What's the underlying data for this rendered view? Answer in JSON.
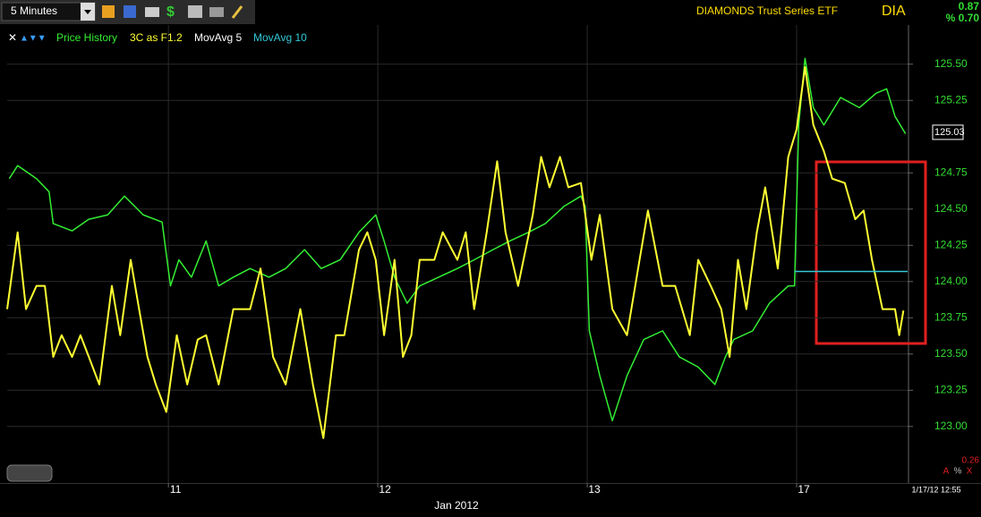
{
  "toolbar": {
    "interval": "5 Minutes"
  },
  "header": {
    "name": "DIAMONDS Trust Series ETF",
    "symbol": "DIA",
    "change": "0.87",
    "pct_change": "% 0.70"
  },
  "footer": {
    "indicator_value": "0.26",
    "buttons": [
      "A",
      "%",
      "X"
    ],
    "timestamp": "1/17/12 12:55"
  },
  "chart_data": {
    "type": "line",
    "xlabel": "Jan 2012",
    "xlim": [
      0,
      4.3
    ],
    "xticks": [
      {
        "value": 0.77,
        "label": "11"
      },
      {
        "value": 1.77,
        "label": "12"
      },
      {
        "value": 2.77,
        "label": "13"
      },
      {
        "value": 3.77,
        "label": "17"
      }
    ],
    "ylim": [
      122.61,
      125.77
    ],
    "yticks": [
      {
        "value": 123,
        "label": "123.00"
      },
      123.25,
      {
        "value": 123.5,
        "label": "123.50"
      },
      123.75,
      {
        "value": 124,
        "label": "124.00"
      },
      124.25,
      {
        "value": 124.5,
        "label": "124.50"
      },
      124.75,
      125.25,
      {
        "value": 125.5,
        "label": "125.50"
      }
    ],
    "grid": true,
    "last_price": 125.03,
    "extra_legend": {
      "name": "MovAvg 5",
      "color": "#ffffff"
    },
    "series": [
      {
        "name": "Price History",
        "color": "#33ee33",
        "x": [
          0.01,
          0.05,
          0.14,
          0.2,
          0.22,
          0.31,
          0.39,
          0.48,
          0.56,
          0.65,
          0.74,
          0.78,
          0.82,
          0.88,
          0.95,
          1.01,
          1.08,
          1.16,
          1.25,
          1.33,
          1.42,
          1.5,
          1.59,
          1.68,
          1.76,
          1.8,
          1.85,
          1.91,
          1.97,
          2.06,
          2.15,
          2.23,
          2.32,
          2.4,
          2.49,
          2.57,
          2.66,
          2.74,
          2.76,
          2.78,
          2.83,
          2.89,
          2.96,
          3.04,
          3.13,
          3.21,
          3.3,
          3.38,
          3.43,
          3.47,
          3.56,
          3.64,
          3.73,
          3.76,
          3.78,
          3.81,
          3.85,
          3.9,
          3.98,
          4.07,
          4.15,
          4.2,
          4.24,
          4.29
        ],
        "values": [
          124.71,
          124.8,
          124.71,
          124.62,
          124.4,
          124.35,
          124.43,
          124.46,
          124.59,
          124.46,
          124.41,
          123.97,
          124.15,
          124.03,
          124.28,
          123.97,
          124.03,
          124.09,
          124.03,
          124.09,
          124.22,
          124.09,
          124.15,
          124.34,
          124.46,
          124.28,
          124.03,
          123.85,
          123.97,
          124.03,
          124.09,
          124.15,
          124.22,
          124.28,
          124.34,
          124.4,
          124.52,
          124.59,
          124.52,
          123.66,
          123.35,
          123.04,
          123.35,
          123.6,
          123.66,
          123.48,
          123.41,
          123.29,
          123.48,
          123.6,
          123.66,
          123.85,
          123.97,
          123.97,
          125.08,
          125.54,
          125.2,
          125.08,
          125.27,
          125.2,
          125.3,
          125.33,
          125.14,
          125.02
        ]
      },
      {
        "name": "3C as F1.2",
        "color": "#ffff33",
        "x": [
          0,
          0.05,
          0.09,
          0.14,
          0.18,
          0.22,
          0.26,
          0.31,
          0.35,
          0.39,
          0.44,
          0.5,
          0.54,
          0.59,
          0.63,
          0.67,
          0.71,
          0.76,
          0.81,
          0.86,
          0.91,
          0.95,
          1.01,
          1.08,
          1.16,
          1.21,
          1.27,
          1.33,
          1.4,
          1.46,
          1.51,
          1.57,
          1.61,
          1.68,
          1.72,
          1.76,
          1.8,
          1.85,
          1.89,
          1.93,
          1.97,
          2.04,
          2.08,
          2.15,
          2.19,
          2.23,
          2.29,
          2.34,
          2.38,
          2.44,
          2.51,
          2.55,
          2.59,
          2.64,
          2.68,
          2.74,
          2.79,
          2.83,
          2.89,
          2.96,
          3.02,
          3.06,
          3.13,
          3.19,
          3.26,
          3.3,
          3.36,
          3.41,
          3.45,
          3.49,
          3.53,
          3.58,
          3.62,
          3.68,
          3.73,
          3.77,
          3.81,
          3.85,
          3.9,
          3.94,
          4.0,
          4.05,
          4.09,
          4.13,
          4.18,
          4.24,
          4.26,
          4.28
        ],
        "values": [
          123.81,
          124.34,
          123.81,
          123.97,
          123.97,
          123.48,
          123.63,
          123.48,
          123.63,
          123.48,
          123.29,
          123.97,
          123.63,
          124.15,
          123.81,
          123.48,
          123.29,
          123.1,
          123.63,
          123.29,
          123.6,
          123.63,
          123.29,
          123.81,
          123.81,
          124.09,
          123.48,
          123.29,
          123.81,
          123.29,
          122.92,
          123.63,
          123.63,
          124.22,
          124.34,
          124.15,
          123.63,
          124.15,
          123.48,
          123.63,
          124.15,
          124.15,
          124.34,
          124.15,
          124.34,
          123.81,
          124.34,
          124.83,
          124.34,
          123.97,
          124.46,
          124.86,
          124.65,
          124.86,
          124.65,
          124.68,
          124.15,
          124.46,
          123.81,
          123.63,
          124.15,
          124.49,
          123.97,
          123.97,
          123.63,
          124.15,
          123.97,
          123.81,
          123.48,
          124.15,
          123.81,
          124.34,
          124.65,
          124.09,
          124.86,
          125.05,
          125.48,
          125.08,
          124.9,
          124.71,
          124.68,
          124.43,
          124.49,
          124.15,
          123.81,
          123.81,
          123.63,
          123.8
        ]
      },
      {
        "name": "MovAvg 10",
        "color": "#33c8d8",
        "x": [
          3.76,
          4.3
        ],
        "values": [
          124.07,
          124.07
        ]
      }
    ]
  }
}
